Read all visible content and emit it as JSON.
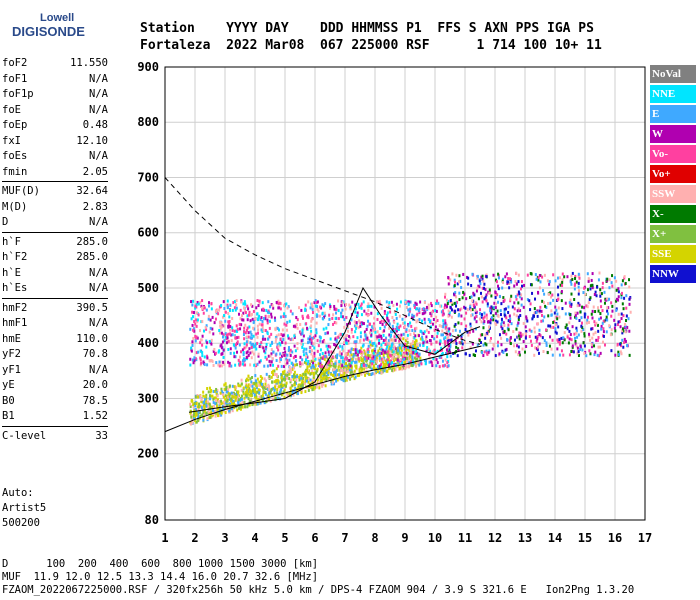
{
  "logo": {
    "line1": "Lowell",
    "line2": "DIGISONDE"
  },
  "header": {
    "line1": "Station    YYYY DAY    DDD HHMMSS P1  FFS S AXN PPS IGA PS",
    "line2": "Fortaleza  2022 Mar08  067 225000 RSF      1 714 100 10+ 11"
  },
  "params": [
    [
      {
        "k": "foF2",
        "v": "11.550"
      },
      {
        "k": "foF1",
        "v": "N/A"
      },
      {
        "k": "foF1p",
        "v": "N/A"
      },
      {
        "k": "foE",
        "v": "N/A"
      },
      {
        "k": "foEp",
        "v": "0.48"
      },
      {
        "k": "fxI",
        "v": "12.10"
      },
      {
        "k": "foEs",
        "v": "N/A"
      },
      {
        "k": "fmin",
        "v": "2.05"
      }
    ],
    [
      {
        "k": "MUF(D)",
        "v": "32.64"
      },
      {
        "k": "M(D)",
        "v": "2.83"
      },
      {
        "k": "D",
        "v": "N/A"
      }
    ],
    [
      {
        "k": "h`F",
        "v": "285.0"
      },
      {
        "k": "h`F2",
        "v": "285.0"
      },
      {
        "k": "h`E",
        "v": "N/A"
      },
      {
        "k": "h`Es",
        "v": "N/A"
      }
    ],
    [
      {
        "k": "hmF2",
        "v": "390.5"
      },
      {
        "k": "hmF1",
        "v": "N/A"
      },
      {
        "k": "hmE",
        "v": "110.0"
      },
      {
        "k": "yF2",
        "v": "70.8"
      },
      {
        "k": "yF1",
        "v": "N/A"
      },
      {
        "k": "yE",
        "v": "20.0"
      },
      {
        "k": "B0",
        "v": "78.5"
      },
      {
        "k": "B1",
        "v": "1.52"
      }
    ],
    [
      {
        "k": "C-level",
        "v": "33"
      }
    ]
  ],
  "auto": {
    "line1": "Auto:",
    "line2": "Artist5",
    "line3": "500200"
  },
  "legend": [
    {
      "label": "NoVal",
      "color": "#808080"
    },
    {
      "label": "NNE",
      "color": "#00e5ff"
    },
    {
      "label": "E",
      "color": "#3fa9ff"
    },
    {
      "label": "W",
      "color": "#b000b0"
    },
    {
      "label": "Vo-",
      "color": "#ff40a0"
    },
    {
      "label": "Vo+",
      "color": "#e00000"
    },
    {
      "label": "SSW",
      "color": "#ffb0b0"
    },
    {
      "label": "X-",
      "color": "#007a00"
    },
    {
      "label": "X+",
      "color": "#80c040"
    },
    {
      "label": "SSE",
      "color": "#d4d400"
    },
    {
      "label": "NNW",
      "color": "#1010d0"
    }
  ],
  "bottom": {
    "line1": "D      100  200  400  600  800 1000 1500 3000 [km]",
    "line2": "MUF  11.9 12.0 12.5 13.3 14.4 16.0 20.7 32.6 [MHz]",
    "line3": "FZAOM_2022067225000.RSF / 320fx256h 50 kHz 5.0 km / DPS-4 FZAOM 904 / 3.9 S 321.6 E   Ion2Png 1.3.20"
  },
  "chart_data": {
    "type": "scatter",
    "x_ticks": [
      1,
      2,
      3,
      4,
      5,
      6,
      7,
      8,
      9,
      10,
      11,
      12,
      13,
      14,
      15,
      16,
      17
    ],
    "y_ticks": [
      80,
      200,
      300,
      400,
      500,
      600,
      700,
      800,
      900
    ],
    "y_ticks_positions": [
      80,
      200,
      300,
      400,
      500,
      600,
      700,
      800,
      900
    ],
    "xlim": [
      1,
      17
    ],
    "ylim": [
      80,
      900
    ],
    "grid": true,
    "regions": [
      {
        "name": "low-trace",
        "x": [
          1.8,
          9.5
        ],
        "y": [
          255,
          360
        ],
        "colors": [
          "#d4d400",
          "#d4d400",
          "#3fa9ff",
          "#ffb0b0",
          "#80c040"
        ]
      },
      {
        "name": "mid-band",
        "x": [
          1.8,
          10.5
        ],
        "y": [
          360,
          480
        ],
        "colors": [
          "#ffb0b0",
          "#3fa9ff",
          "#b000b0",
          "#00e5ff",
          "#ff40a0"
        ]
      },
      {
        "name": "high-band",
        "x": [
          10.3,
          16.5
        ],
        "y": [
          380,
          530
        ],
        "colors": [
          "#3fa9ff",
          "#ff40a0",
          "#b000b0",
          "#1010d0",
          "#007a00",
          "#ffb0b0"
        ]
      }
    ],
    "profile_line": [
      [
        1.0,
        240
      ],
      [
        2.0,
        262
      ],
      [
        3.0,
        280
      ],
      [
        4.0,
        295
      ],
      [
        5.0,
        310
      ],
      [
        6.0,
        325
      ],
      [
        7.0,
        340
      ],
      [
        8.0,
        352
      ],
      [
        9.0,
        362
      ],
      [
        10.0,
        375
      ],
      [
        11.0,
        388
      ],
      [
        11.55,
        395
      ]
    ],
    "trace_virtual": [
      [
        1.8,
        275
      ],
      [
        3.0,
        285
      ],
      [
        4.0,
        292
      ],
      [
        5.0,
        300
      ],
      [
        6.0,
        330
      ],
      [
        7.0,
        420
      ],
      [
        7.6,
        500
      ],
      [
        8.2,
        450
      ],
      [
        9.0,
        395
      ],
      [
        10.0,
        380
      ],
      [
        11.0,
        420
      ],
      [
        11.5,
        430
      ]
    ],
    "dashed_curve": [
      [
        1.0,
        700
      ],
      [
        2.0,
        640
      ],
      [
        3.0,
        590
      ],
      [
        4.0,
        560
      ],
      [
        5.0,
        535
      ],
      [
        6.0,
        515
      ],
      [
        7.0,
        495
      ],
      [
        8.0,
        475
      ],
      [
        9.0,
        450
      ],
      [
        10.0,
        425
      ],
      [
        11.0,
        405
      ],
      [
        11.5,
        398
      ]
    ]
  }
}
